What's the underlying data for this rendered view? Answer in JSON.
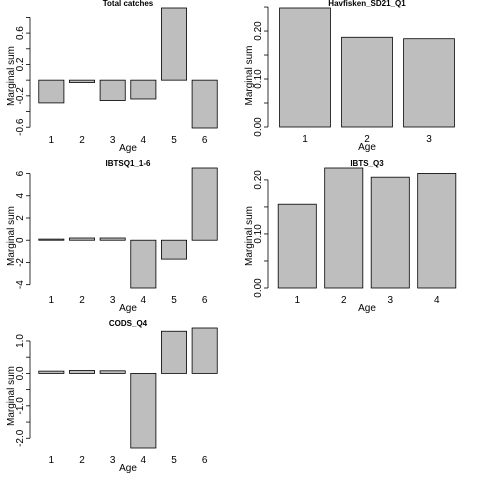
{
  "chart_data": [
    {
      "type": "bar",
      "title": "Total catches",
      "xlabel": "Age",
      "ylabel": "Marginal sum",
      "categories": [
        "1",
        "2",
        "3",
        "4",
        "5",
        "6"
      ],
      "values": [
        -0.29,
        -0.03,
        -0.26,
        -0.24,
        0.92,
        -0.61
      ],
      "ylim": [
        -0.61,
        0.92
      ],
      "yticks": [
        -0.6,
        -0.4,
        -0.2,
        0.0,
        0.2,
        0.4,
        0.6,
        0.8
      ],
      "ytick_labels": [
        "-0.6",
        "",
        "-0.2",
        "",
        "0.2",
        "",
        "0.6",
        ""
      ],
      "bar_color": "#bebebe"
    },
    {
      "type": "bar",
      "title": "Havfisken_SD21_Q1",
      "xlabel": "Age",
      "ylabel": "Marginal sum",
      "categories": [
        "1",
        "2",
        "3"
      ],
      "values": [
        0.248,
        0.187,
        0.184
      ],
      "ylim": [
        0,
        0.248
      ],
      "yticks": [
        0.0,
        0.05,
        0.1,
        0.15,
        0.2,
        0.25
      ],
      "ytick_labels": [
        "0.00",
        "",
        "0.10",
        "",
        "0.20",
        ""
      ],
      "bar_color": "#bebebe"
    },
    {
      "type": "bar",
      "title": "IBTSQ1_1-6",
      "xlabel": "Age",
      "ylabel": "Marginal sum",
      "categories": [
        "1",
        "2",
        "3",
        "4",
        "5",
        "6"
      ],
      "values": [
        0.1,
        0.2,
        0.2,
        -4.3,
        -1.7,
        6.5
      ],
      "ylim": [
        -4.3,
        6.5
      ],
      "yticks": [
        -4,
        -2,
        0,
        2,
        4,
        6
      ],
      "ytick_labels": [
        "-4",
        "-2",
        "0",
        "2",
        "4",
        "6"
      ],
      "bar_color": "#bebebe"
    },
    {
      "type": "bar",
      "title": "IBTS_Q3",
      "xlabel": "Age",
      "ylabel": "Marginal sum",
      "categories": [
        "1",
        "2",
        "3",
        "4"
      ],
      "values": [
        0.155,
        0.222,
        0.205,
        0.212
      ],
      "ylim": [
        0,
        0.222
      ],
      "yticks": [
        0.0,
        0.05,
        0.1,
        0.15,
        0.2
      ],
      "ytick_labels": [
        "0.00",
        "",
        "0.10",
        "",
        "0.20"
      ],
      "bar_color": "#bebebe"
    },
    {
      "type": "bar",
      "title": "CODS_Q4",
      "xlabel": "Age",
      "ylabel": "Marginal sum",
      "categories": [
        "1",
        "2",
        "3",
        "4",
        "5",
        "6"
      ],
      "values": [
        0.07,
        0.09,
        0.08,
        -2.3,
        1.3,
        1.4
      ],
      "ylim": [
        -2.3,
        1.4
      ],
      "yticks": [
        -2.0,
        -1.5,
        -1.0,
        -0.5,
        0.0,
        0.5,
        1.0
      ],
      "ytick_labels": [
        "-2.0",
        "",
        "-1.0",
        "",
        "0.0",
        "",
        "1.0"
      ],
      "bar_color": "#bebebe"
    }
  ]
}
